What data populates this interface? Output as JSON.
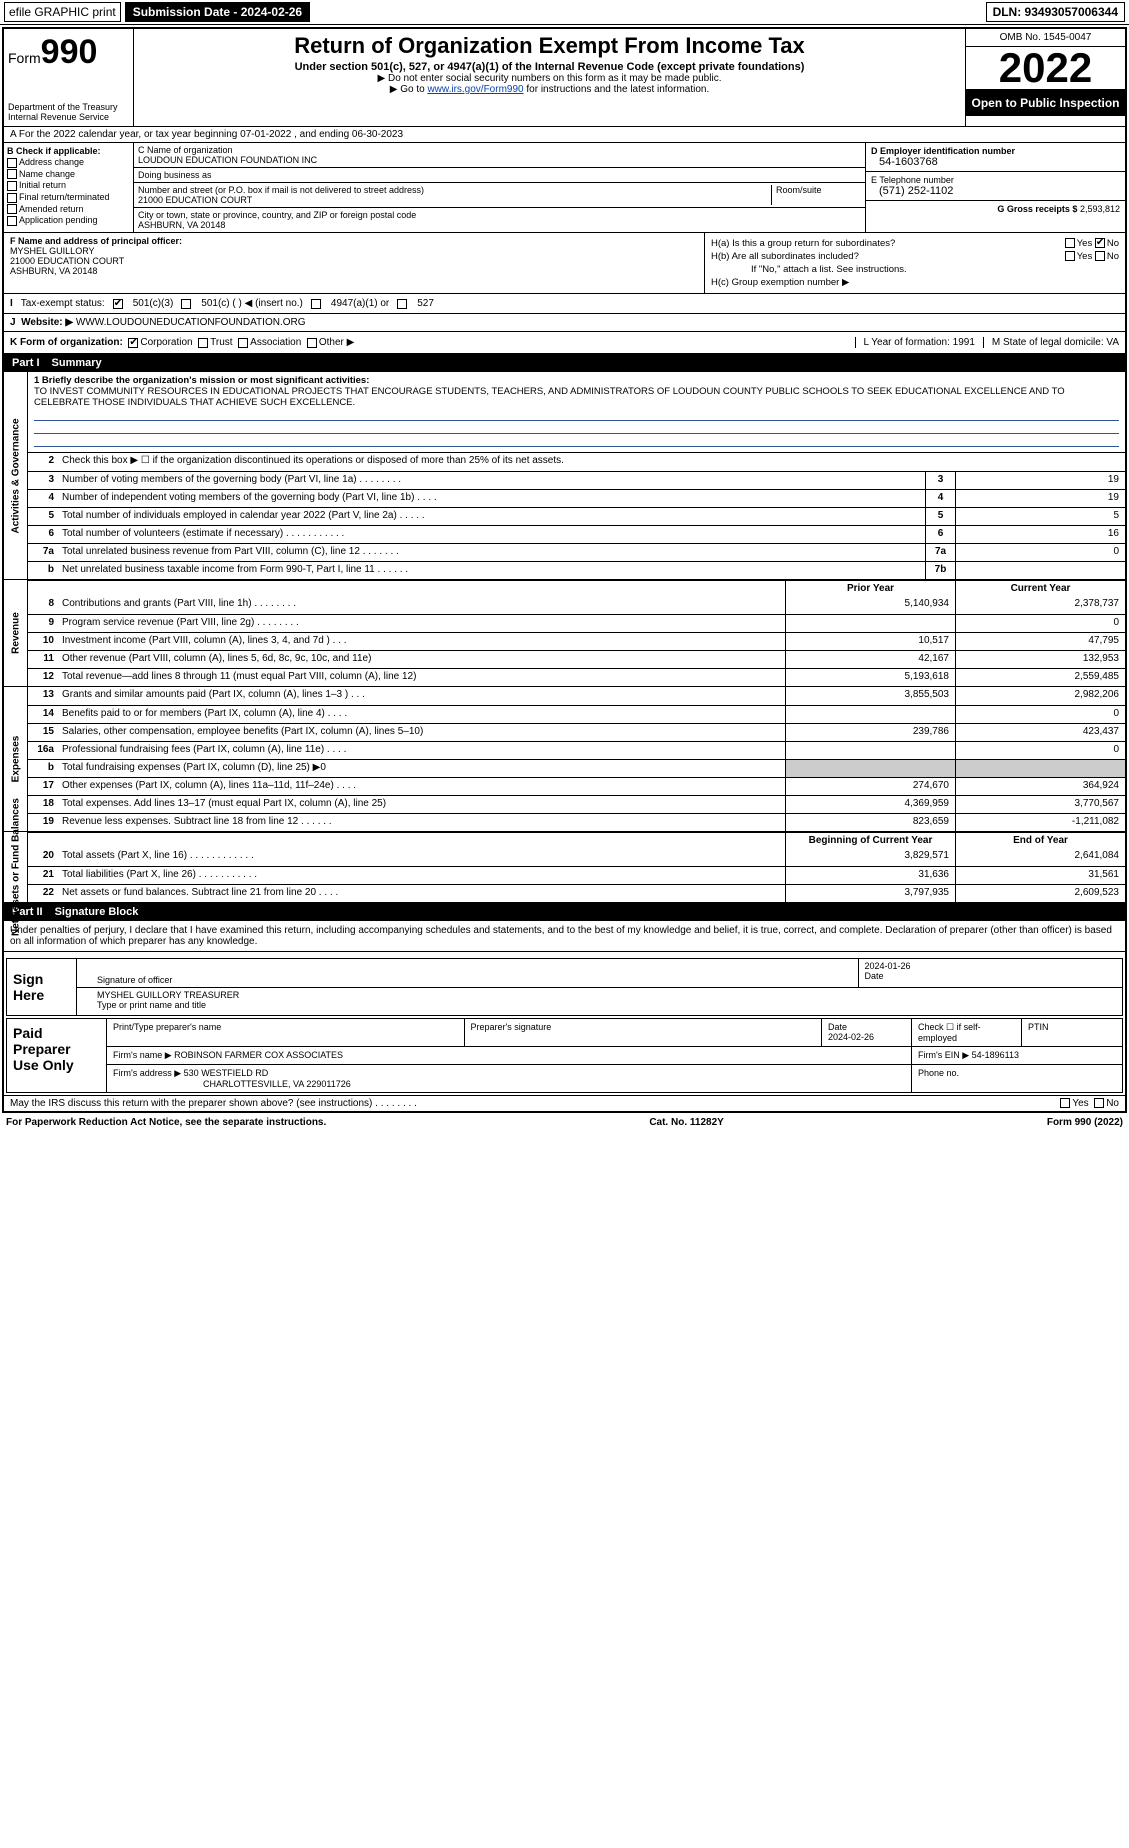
{
  "top": {
    "efile": "efile GRAPHIC print",
    "submission_btn": "Submission Date - 2024-02-26",
    "dln": "DLN: 93493057006344"
  },
  "header": {
    "form_prefix": "Form",
    "form_number": "990",
    "title": "Return of Organization Exempt From Income Tax",
    "subtitle1": "Under section 501(c), 527, or 4947(a)(1) of the Internal Revenue Code (except private foundations)",
    "subtitle2": "▶ Do not enter social security numbers on this form as it may be made public.",
    "subtitle3_prefix": "▶ Go to ",
    "subtitle3_link": "www.irs.gov/Form990",
    "subtitle3_suffix": " for instructions and the latest information.",
    "dept": "Department of the Treasury Internal Revenue Service",
    "omb": "OMB No. 1545-0047",
    "year": "2022",
    "open_public": "Open to Public Inspection"
  },
  "rowA": "A For the 2022 calendar year, or tax year beginning 07-01-2022     , and ending 06-30-2023",
  "colB": {
    "label": "B Check if applicable:",
    "items": [
      "Address change",
      "Name change",
      "Initial return",
      "Final return/terminated",
      "Amended return",
      "Application pending"
    ]
  },
  "colC": {
    "name_lbl": "C Name of organization",
    "name": "LOUDOUN EDUCATION FOUNDATION INC",
    "dba_lbl": "Doing business as",
    "dba": "",
    "addr_lbl": "Number and street (or P.O. box if mail is not delivered to street address)",
    "room_lbl": "Room/suite",
    "addr": "21000 EDUCATION COURT",
    "city_lbl": "City or town, state or province, country, and ZIP or foreign postal code",
    "city": "ASHBURN, VA  20148"
  },
  "colD": {
    "ein_lbl": "D Employer identification number",
    "ein": "54-1603768",
    "tel_lbl": "E Telephone number",
    "tel": "(571) 252-1102",
    "gross_lbl": "G Gross receipts $",
    "gross": "2,593,812"
  },
  "colF": {
    "lbl": "F Name and address of principal officer:",
    "name": "MYSHEL GUILLORY",
    "addr1": "21000 EDUCATION COURT",
    "addr2": "ASHBURN, VA  20148"
  },
  "colH": {
    "a": "H(a)  Is this a group return for subordinates?",
    "a_yes": "Yes",
    "a_no": "No",
    "b": "H(b)  Are all subordinates included?",
    "b_note": "If \"No,\" attach a list. See instructions.",
    "c": "H(c)  Group exemption number ▶"
  },
  "rowI": {
    "label": "Tax-exempt status:",
    "opt1": "501(c)(3)",
    "opt2": "501(c) (   ) ◀ (insert no.)",
    "opt3": "4947(a)(1) or",
    "opt4": "527"
  },
  "rowJ": {
    "label": "Website: ▶",
    "val": "WWW.LOUDOUNEDUCATIONFOUNDATION.ORG"
  },
  "rowK": {
    "label": "K Form of organization:",
    "opts": [
      "Corporation",
      "Trust",
      "Association",
      "Other ▶"
    ],
    "l": "L Year of formation: 1991",
    "m": "M State of legal domicile: VA"
  },
  "part1": {
    "num": "Part I",
    "title": "Summary"
  },
  "mission_lbl": "1  Briefly describe the organization's mission or most significant activities:",
  "mission": "TO INVEST COMMUNITY RESOURCES IN EDUCATIONAL PROJECTS THAT ENCOURAGE STUDENTS, TEACHERS, AND ADMINISTRATORS OF LOUDOUN COUNTY PUBLIC SCHOOLS TO SEEK EDUCATIONAL EXCELLENCE AND TO CELEBRATE THOSE INDIVIDUALS THAT ACHIEVE SUCH EXCELLENCE.",
  "gov_lines": [
    {
      "n": "2",
      "t": "Check this box ▶ ☐  if the organization discontinued its operations or disposed of more than 25% of its net assets.",
      "box": "",
      "v": ""
    },
    {
      "n": "3",
      "t": "Number of voting members of the governing body (Part VI, line 1a)   .    .    .    .    .    .    .    .",
      "box": "3",
      "v": "19"
    },
    {
      "n": "4",
      "t": "Number of independent voting members of the governing body (Part VI, line 1b)   .    .    .    .",
      "box": "4",
      "v": "19"
    },
    {
      "n": "5",
      "t": "Total number of individuals employed in calendar year 2022 (Part V, line 2a)   .    .    .    .    .",
      "box": "5",
      "v": "5"
    },
    {
      "n": "6",
      "t": "Total number of volunteers (estimate if necessary)   .    .    .    .    .    .    .    .    .    .    .",
      "box": "6",
      "v": "16"
    },
    {
      "n": "7a",
      "t": "Total unrelated business revenue from Part VIII, column (C), line 12   .    .    .    .    .    .    .",
      "box": "7a",
      "v": "0"
    },
    {
      "n": "b",
      "t": "Net unrelated business taxable income from Form 990-T, Part I, line 11   .    .    .    .    .    .",
      "box": "7b",
      "v": ""
    }
  ],
  "prior_lbl": "Prior Year",
  "curr_lbl": "Current Year",
  "rev_lines": [
    {
      "n": "8",
      "t": "Contributions and grants (Part VIII, line 1h)   .    .    .    .    .    .    .    .",
      "p": "5,140,934",
      "c": "2,378,737"
    },
    {
      "n": "9",
      "t": "Program service revenue (Part VIII, line 2g)   .    .    .    .    .    .    .    .",
      "p": "",
      "c": "0"
    },
    {
      "n": "10",
      "t": "Investment income (Part VIII, column (A), lines 3, 4, and 7d )   .    .    .",
      "p": "10,517",
      "c": "47,795"
    },
    {
      "n": "11",
      "t": "Other revenue (Part VIII, column (A), lines 5, 6d, 8c, 9c, 10c, and 11e)",
      "p": "42,167",
      "c": "132,953"
    },
    {
      "n": "12",
      "t": "Total revenue—add lines 8 through 11 (must equal Part VIII, column (A), line 12)",
      "p": "5,193,618",
      "c": "2,559,485"
    }
  ],
  "exp_lines": [
    {
      "n": "13",
      "t": "Grants and similar amounts paid (Part IX, column (A), lines 1–3 )   .    .    .",
      "p": "3,855,503",
      "c": "2,982,206"
    },
    {
      "n": "14",
      "t": "Benefits paid to or for members (Part IX, column (A), line 4)   .    .    .    .",
      "p": "",
      "c": "0"
    },
    {
      "n": "15",
      "t": "Salaries, other compensation, employee benefits (Part IX, column (A), lines 5–10)",
      "p": "239,786",
      "c": "423,437"
    },
    {
      "n": "16a",
      "t": "Professional fundraising fees (Part IX, column (A), line 11e)   .    .    .    .",
      "p": "",
      "c": "0"
    },
    {
      "n": "b",
      "t": "Total fundraising expenses (Part IX, column (D), line 25) ▶0",
      "p": "grey",
      "c": "grey"
    },
    {
      "n": "17",
      "t": "Other expenses (Part IX, column (A), lines 11a–11d, 11f–24e)   .    .    .    .",
      "p": "274,670",
      "c": "364,924"
    },
    {
      "n": "18",
      "t": "Total expenses. Add lines 13–17 (must equal Part IX, column (A), line 25)",
      "p": "4,369,959",
      "c": "3,770,567"
    },
    {
      "n": "19",
      "t": "Revenue less expenses. Subtract line 18 from line 12   .    .    .    .    .    .",
      "p": "823,659",
      "c": "-1,211,082"
    }
  ],
  "boy_lbl": "Beginning of Current Year",
  "eoy_lbl": "End of Year",
  "net_lines": [
    {
      "n": "20",
      "t": "Total assets (Part X, line 16)   .    .    .    .    .    .    .    .    .    .    .    .",
      "p": "3,829,571",
      "c": "2,641,084"
    },
    {
      "n": "21",
      "t": "Total liabilities (Part X, line 26)   .    .    .    .    .    .    .    .    .    .    .",
      "p": "31,636",
      "c": "31,561"
    },
    {
      "n": "22",
      "t": "Net assets or fund balances. Subtract line 21 from line 20   .    .    .    .",
      "p": "3,797,935",
      "c": "2,609,523"
    }
  ],
  "vtabs": {
    "gov": "Activities & Governance",
    "rev": "Revenue",
    "exp": "Expenses",
    "net": "Net Assets or Fund Balances"
  },
  "part2": {
    "num": "Part II",
    "title": "Signature Block"
  },
  "sig_intro": "Under penalties of perjury, I declare that I have examined this return, including accompanying schedules and statements, and to the best of my knowledge and belief, it is true, correct, and complete. Declaration of preparer (other than officer) is based on all information of which preparer has any knowledge.",
  "sign": {
    "left": "Sign Here",
    "sig_lbl": "Signature of officer",
    "date": "2024-01-26",
    "date_lbl": "Date",
    "name": "MYSHEL GUILLORY  TREASURER",
    "name_lbl": "Type or print name and title"
  },
  "prep": {
    "left": "Paid Preparer Use Only",
    "h1": "Print/Type preparer's name",
    "h2": "Preparer's signature",
    "h3": "Date",
    "h3v": "2024-02-26",
    "h4": "Check ☐ if self-employed",
    "h5": "PTIN",
    "firm_lbl": "Firm's name    ▶",
    "firm": "ROBINSON FARMER COX ASSOCIATES",
    "ein_lbl": "Firm's EIN ▶",
    "ein": "54-1896113",
    "addr_lbl": "Firm's address ▶",
    "addr1": "530 WESTFIELD RD",
    "addr2": "CHARLOTTESVILLE, VA  229011726",
    "phone_lbl": "Phone no."
  },
  "discuss": "May the IRS discuss this return with the preparer shown above? (see instructions)   .    .    .    .    .    .    .    .",
  "footer": {
    "l": "For Paperwork Reduction Act Notice, see the separate instructions.",
    "m": "Cat. No. 11282Y",
    "r": "Form 990 (2022)"
  }
}
